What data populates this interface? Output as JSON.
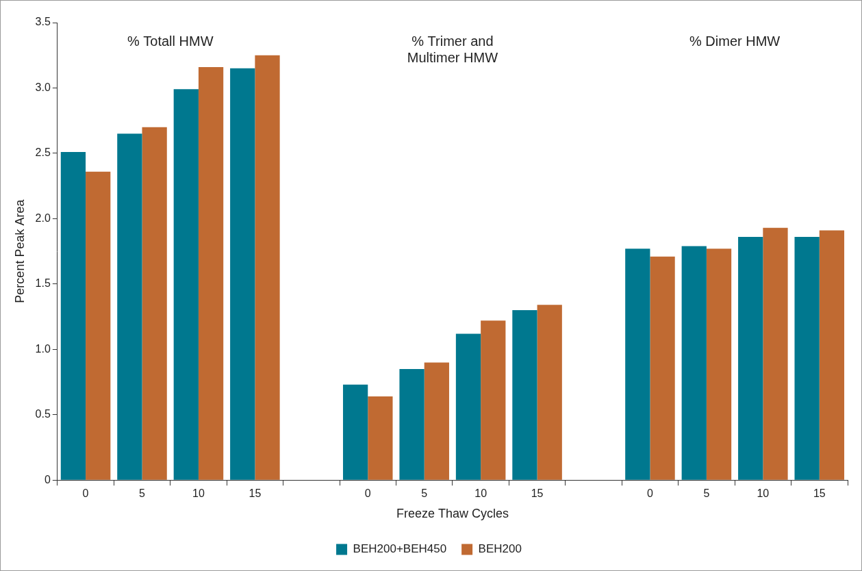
{
  "chart_data": {
    "type": "bar",
    "x_label": "Freeze Thaw Cycles",
    "y_label": "Percent Peak Area",
    "group_labels": [
      "% Totall HMW",
      "% Trimer and\nMultimer HMW",
      "% Dimer HMW"
    ],
    "categories": [
      "0",
      "5",
      "10",
      "15",
      null,
      "0",
      "5",
      "10",
      "15",
      null,
      "0",
      "5",
      "10",
      "15"
    ],
    "series": [
      {
        "name": "BEH200+BEH450",
        "color": "#00788f",
        "values": [
          2.51,
          2.65,
          2.99,
          3.15,
          null,
          0.73,
          0.85,
          1.12,
          1.3,
          null,
          1.77,
          1.79,
          1.86,
          1.86
        ]
      },
      {
        "name": "BEH200",
        "color": "#c06a32",
        "values": [
          2.36,
          2.7,
          3.16,
          3.25,
          null,
          0.64,
          0.9,
          1.22,
          1.34,
          null,
          1.71,
          1.77,
          1.93,
          1.91
        ]
      }
    ],
    "ylim": [
      0,
      3.5
    ],
    "yticks": [
      0,
      0.5,
      {
        "value": 1,
        "label": "1.0"
      },
      1.5,
      {
        "value": 2,
        "label": "2.0"
      },
      2.5,
      {
        "value": 3,
        "label": "3.0"
      },
      3.5
    ],
    "grid": false,
    "legend": "bottom"
  }
}
